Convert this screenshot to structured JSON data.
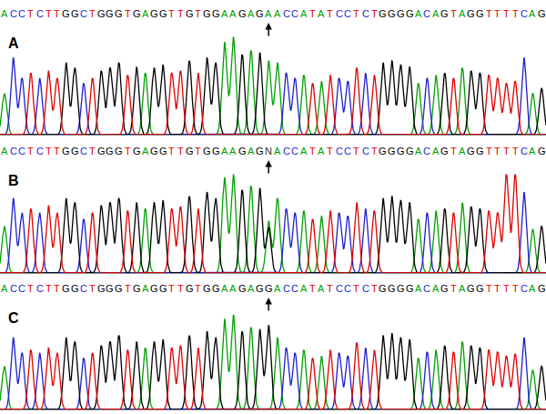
{
  "chart_data": [
    {
      "type": "line",
      "title": "A",
      "categories": [
        "A",
        "C",
        "C",
        "T",
        "C",
        "T",
        "T",
        "G",
        "G",
        "C",
        "T",
        "G",
        "G",
        "G",
        "T",
        "G",
        "A",
        "G",
        "G",
        "T",
        "T",
        "G",
        "T",
        "G",
        "G",
        "A",
        "A",
        "G",
        "A",
        "G",
        "A",
        "A",
        "C",
        "C",
        "A",
        "T",
        "A",
        "T",
        "C",
        "C",
        "T",
        "C",
        "T",
        "G",
        "G",
        "G",
        "G",
        "A",
        "C",
        "A",
        "G",
        "T",
        "A",
        "G",
        "G",
        "T",
        "T",
        "T",
        "T",
        "C",
        "A",
        "G"
      ],
      "values": [
        40,
        75,
        55,
        60,
        55,
        62,
        55,
        70,
        65,
        50,
        55,
        62,
        65,
        70,
        58,
        66,
        60,
        65,
        68,
        60,
        62,
        72,
        60,
        75,
        70,
        90,
        95,
        78,
        82,
        80,
        72,
        70,
        60,
        55,
        58,
        50,
        52,
        58,
        55,
        52,
        65,
        60,
        58,
        70,
        72,
        68,
        66,
        50,
        55,
        58,
        60,
        55,
        65,
        62,
        60,
        58,
        55,
        50,
        52,
        75,
        40,
        45
      ],
      "channels": [
        {
          "name": "A",
          "color": "#00a000"
        },
        {
          "name": "C",
          "color": "#1f1fd0"
        },
        {
          "name": "G",
          "color": "#000000"
        },
        {
          "name": "T",
          "color": "#e00000"
        }
      ],
      "arrow_at": 30,
      "xlim": [
        -0.5,
        61.5
      ],
      "ylim": [
        0,
        100
      ],
      "tick_labels": false,
      "grid": false
    },
    {
      "type": "line",
      "title": "B",
      "categories": [
        "A",
        "C",
        "C",
        "T",
        "C",
        "T",
        "T",
        "G",
        "G",
        "C",
        "T",
        "G",
        "G",
        "G",
        "T",
        "G",
        "A",
        "G",
        "G",
        "T",
        "T",
        "G",
        "T",
        "G",
        "G",
        "A",
        "A",
        "G",
        "A",
        "G",
        "N",
        "A",
        "C",
        "C",
        "A",
        "T",
        "A",
        "T",
        "C",
        "C",
        "T",
        "C",
        "T",
        "G",
        "G",
        "G",
        "G",
        "A",
        "C",
        "A",
        "G",
        "T",
        "A",
        "G",
        "G",
        "T",
        "T",
        "T",
        "T",
        "C",
        "A",
        "G"
      ],
      "values": [
        45,
        72,
        58,
        62,
        58,
        65,
        58,
        72,
        68,
        52,
        58,
        65,
        68,
        72,
        60,
        68,
        62,
        68,
        70,
        62,
        64,
        74,
        62,
        78,
        72,
        92,
        95,
        80,
        84,
        82,
        null,
        72,
        62,
        58,
        60,
        52,
        55,
        60,
        58,
        55,
        68,
        62,
        60,
        72,
        74,
        70,
        68,
        52,
        58,
        60,
        62,
        58,
        68,
        64,
        62,
        60,
        58,
        95,
        95,
        78,
        42,
        45
      ],
      "mixed": [
        {
          "index": 30,
          "name": "A",
          "value": 50
        },
        {
          "index": 30,
          "name": "G",
          "value": 44
        }
      ],
      "channels": [
        {
          "name": "A",
          "color": "#00a000"
        },
        {
          "name": "C",
          "color": "#1f1fd0"
        },
        {
          "name": "G",
          "color": "#000000"
        },
        {
          "name": "T",
          "color": "#e00000"
        }
      ],
      "arrow_at": 30,
      "xlim": [
        -0.5,
        61.5
      ],
      "ylim": [
        0,
        100
      ],
      "tick_labels": false,
      "grid": false
    },
    {
      "type": "line",
      "title": "C",
      "categories": [
        "A",
        "C",
        "C",
        "T",
        "C",
        "T",
        "T",
        "G",
        "G",
        "C",
        "T",
        "G",
        "G",
        "G",
        "T",
        "G",
        "A",
        "G",
        "G",
        "T",
        "T",
        "G",
        "T",
        "G",
        "G",
        "A",
        "A",
        "G",
        "A",
        "G",
        "G",
        "A",
        "C",
        "C",
        "A",
        "T",
        "A",
        "T",
        "C",
        "C",
        "T",
        "C",
        "T",
        "G",
        "G",
        "G",
        "G",
        "A",
        "C",
        "A",
        "G",
        "T",
        "A",
        "G",
        "G",
        "T",
        "T",
        "T",
        "T",
        "C",
        "A",
        "G"
      ],
      "values": [
        42,
        70,
        55,
        58,
        55,
        60,
        55,
        70,
        66,
        50,
        55,
        62,
        66,
        72,
        58,
        66,
        60,
        66,
        68,
        60,
        62,
        72,
        60,
        76,
        70,
        88,
        92,
        76,
        80,
        78,
        82,
        70,
        60,
        55,
        58,
        50,
        52,
        58,
        55,
        52,
        65,
        60,
        58,
        72,
        74,
        70,
        68,
        50,
        56,
        58,
        62,
        56,
        66,
        62,
        60,
        58,
        56,
        52,
        54,
        70,
        38,
        42
      ],
      "channels": [
        {
          "name": "A",
          "color": "#00a000"
        },
        {
          "name": "C",
          "color": "#1f1fd0"
        },
        {
          "name": "G",
          "color": "#000000"
        },
        {
          "name": "T",
          "color": "#e00000"
        }
      ],
      "arrow_at": 30,
      "xlim": [
        -0.5,
        61.5
      ],
      "ylim": [
        0,
        100
      ],
      "tick_labels": false,
      "grid": false
    }
  ]
}
